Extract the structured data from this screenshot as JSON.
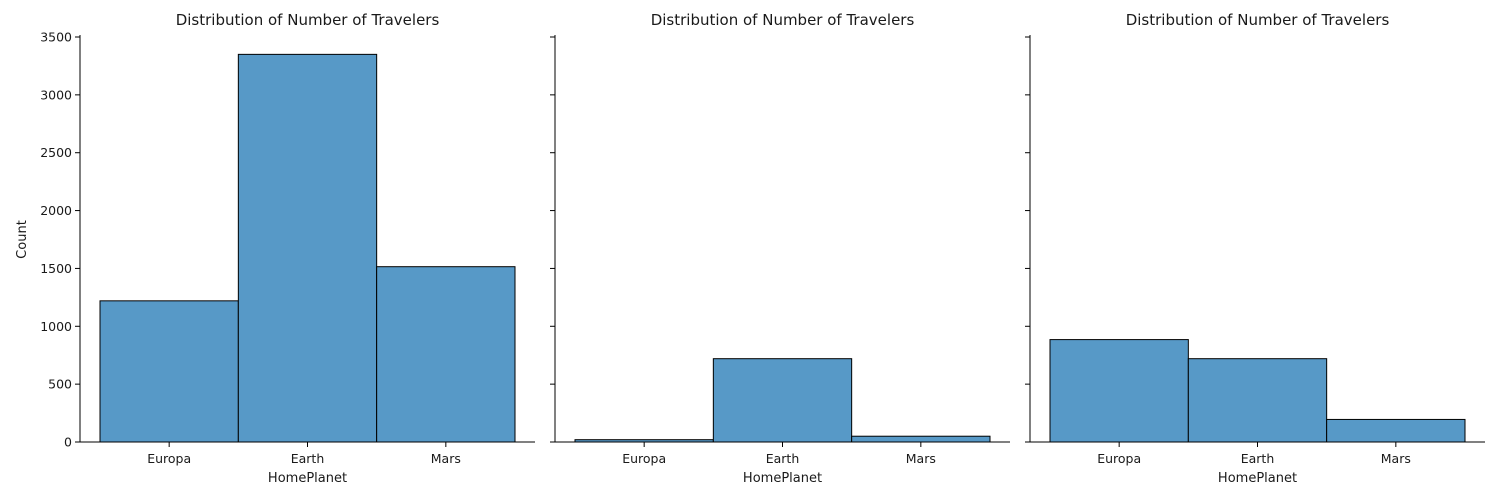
{
  "chart_data": [
    {
      "type": "bar",
      "title": "Distribution of Number of Travelers",
      "xlabel": "HomePlanet",
      "ylabel": "Count",
      "categories": [
        "Europa",
        "Earth",
        "Mars"
      ],
      "values": [
        1220,
        3350,
        1515
      ],
      "ylim": [
        0,
        3500
      ],
      "yticks": [
        0,
        500,
        1000,
        1500,
        2000,
        2500,
        3000,
        3500
      ],
      "show_ytick_labels": true,
      "grid": false,
      "bar_color": "#5799c7",
      "edge_color": "#000000"
    },
    {
      "type": "bar",
      "title": "Distribution of Number of Travelers",
      "xlabel": "HomePlanet",
      "ylabel": "",
      "categories": [
        "Europa",
        "Earth",
        "Mars"
      ],
      "values": [
        20,
        720,
        50
      ],
      "ylim": [
        0,
        3500
      ],
      "yticks": [
        0,
        500,
        1000,
        1500,
        2000,
        2500,
        3000,
        3500
      ],
      "show_ytick_labels": false,
      "grid": false,
      "bar_color": "#5799c7",
      "edge_color": "#000000"
    },
    {
      "type": "bar",
      "title": "Distribution of Number of Travelers",
      "xlabel": "HomePlanet",
      "ylabel": "",
      "categories": [
        "Europa",
        "Earth",
        "Mars"
      ],
      "values": [
        885,
        720,
        195
      ],
      "ylim": [
        0,
        3500
      ],
      "yticks": [
        0,
        500,
        1000,
        1500,
        2000,
        2500,
        3000,
        3500
      ],
      "show_ytick_labels": false,
      "grid": false,
      "bar_color": "#5799c7",
      "edge_color": "#000000"
    }
  ]
}
